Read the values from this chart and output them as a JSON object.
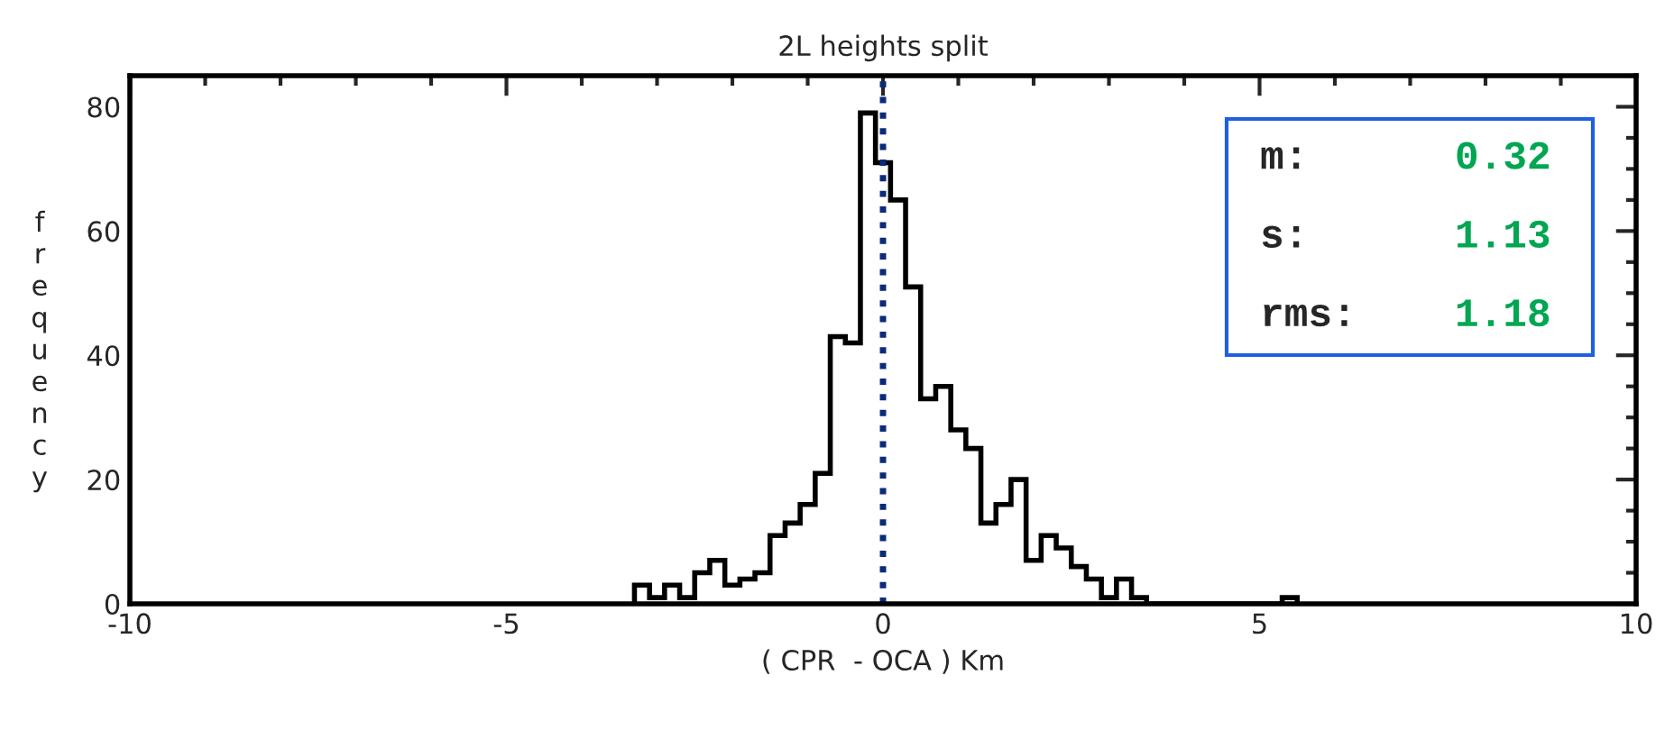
{
  "chart_data": {
    "type": "histogram",
    "title": "2L heights split",
    "xlabel": "( CPR  - OCA ) Km",
    "ylabel": "frequency",
    "bins": [
      -3.3,
      -3.1,
      -2.9,
      -2.7,
      -2.5,
      -2.3,
      -2.1,
      -1.9,
      -1.7,
      -1.5,
      -1.3,
      -1.1,
      -0.9,
      -0.7,
      -0.5,
      -0.3,
      -0.1,
      0.1,
      0.3,
      0.5,
      0.7,
      0.9,
      1.1,
      1.3,
      1.5,
      1.7,
      1.9,
      2.1,
      2.3,
      2.5,
      2.7,
      2.9,
      3.1,
      3.3,
      3.5,
      3.7,
      3.9,
      4.1,
      4.3,
      4.5,
      4.7,
      4.9,
      5.1,
      5.3,
      5.5
    ],
    "values": [
      3,
      1,
      3,
      1,
      5,
      7,
      3,
      4,
      5,
      11,
      13,
      16,
      21,
      43,
      42,
      79,
      71,
      65,
      51,
      33,
      35,
      28,
      25,
      13,
      16,
      20,
      7,
      11,
      9,
      6,
      4,
      1,
      4,
      1,
      0,
      0,
      0,
      0,
      0,
      0,
      0,
      0,
      0,
      1
    ],
    "color": "#000000",
    "xlim": [
      -10,
      10
    ],
    "xticks": [
      -10,
      -5,
      0,
      5,
      10
    ],
    "ylim": [
      0,
      85
    ],
    "yticks": [
      0,
      20,
      40,
      60,
      80
    ],
    "ref_lines": [
      {
        "axis": "x",
        "value": 0,
        "color": "#0a2a7a",
        "line_style": "dotted"
      }
    ],
    "annotations": [
      "m: 0.32",
      "s: 1.13",
      "rms: 1.18"
    ],
    "grid": false,
    "legend": false
  }
}
